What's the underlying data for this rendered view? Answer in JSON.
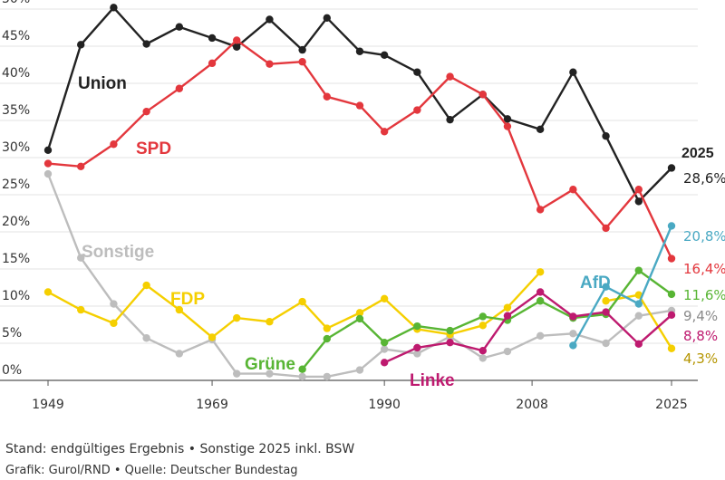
{
  "chart_data": {
    "type": "line",
    "x": [
      1949,
      1953,
      1957,
      1961,
      1965,
      1969,
      1972,
      1976,
      1980,
      1983,
      1987,
      1990,
      1994,
      1998,
      2002,
      2005,
      2009,
      2013,
      2017,
      2021,
      2025
    ],
    "xticks": [
      "1949",
      "1969",
      "1990",
      "2008",
      "2025"
    ],
    "yticks": [
      "0%",
      "5%",
      "10%",
      "15%",
      "20%",
      "25%",
      "30%",
      "35%",
      "40%",
      "45%",
      "50%"
    ],
    "ylim": [
      0,
      50
    ],
    "grid": true,
    "year_label": "2025",
    "series": [
      {
        "name": "Union",
        "color": "#222222",
        "end_label": "28,6%",
        "values": [
          31.0,
          45.2,
          50.2,
          45.3,
          47.6,
          46.1,
          44.9,
          48.6,
          44.5,
          48.8,
          44.3,
          43.8,
          41.5,
          35.1,
          38.5,
          35.2,
          33.8,
          41.5,
          32.9,
          24.1,
          28.6
        ]
      },
      {
        "name": "SPD",
        "color": "#e3373d",
        "end_label": "16,4%",
        "values": [
          29.2,
          28.8,
          31.8,
          36.2,
          39.3,
          42.7,
          45.8,
          42.6,
          42.9,
          38.2,
          37.0,
          33.5,
          36.4,
          40.9,
          38.5,
          34.2,
          23.0,
          25.7,
          20.5,
          25.7,
          16.4
        ]
      },
      {
        "name": "Sonstige",
        "color": "#bdbdbd",
        "end_label": "9,4%",
        "values": [
          27.8,
          16.5,
          10.3,
          5.7,
          3.6,
          5.5,
          0.9,
          0.9,
          0.5,
          0.5,
          1.4,
          4.2,
          3.6,
          5.9,
          3.0,
          3.9,
          6.0,
          6.3,
          5.0,
          8.7,
          9.4
        ]
      },
      {
        "name": "FDP",
        "color": "#f5cf00",
        "end_label": "4,3%",
        "values": [
          11.9,
          9.5,
          7.7,
          12.8,
          9.5,
          5.8,
          8.4,
          7.9,
          10.6,
          7.0,
          9.1,
          11.0,
          6.9,
          6.2,
          7.4,
          9.8,
          14.6,
          null,
          10.7,
          11.5,
          4.3
        ]
      },
      {
        "name": "Grüne",
        "color": "#58b534",
        "end_label": "11,6%",
        "values": [
          null,
          null,
          null,
          null,
          null,
          null,
          null,
          null,
          1.5,
          5.6,
          8.3,
          5.1,
          7.3,
          6.7,
          8.6,
          8.1,
          10.7,
          8.4,
          8.9,
          14.8,
          11.6
        ]
      },
      {
        "name": "Linke",
        "color": "#be1a6f",
        "end_label": "8,8%",
        "values": [
          null,
          null,
          null,
          null,
          null,
          null,
          null,
          null,
          null,
          null,
          null,
          2.4,
          4.4,
          5.1,
          4.0,
          8.7,
          11.9,
          8.6,
          9.2,
          4.9,
          8.8
        ]
      },
      {
        "name": "AfD",
        "color": "#4aa9c3",
        "end_label": "20,8%",
        "values": [
          null,
          null,
          null,
          null,
          null,
          null,
          null,
          null,
          null,
          null,
          null,
          null,
          null,
          null,
          null,
          null,
          null,
          4.7,
          12.6,
          10.3,
          20.8
        ]
      }
    ]
  },
  "footer": {
    "line1": "Stand: endgültiges Ergebnis • Sonstige 2025 inkl. BSW",
    "line2": "Grafik: Gurol/RND • Quelle: Deutscher Bundestag"
  }
}
